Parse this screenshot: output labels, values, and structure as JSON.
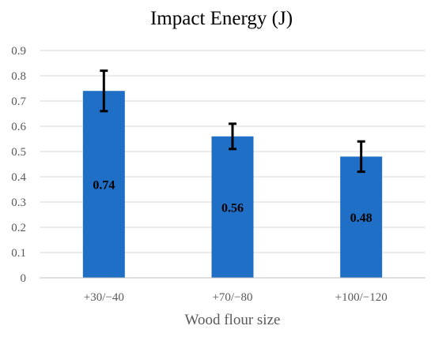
{
  "chart_data": {
    "type": "bar",
    "title": "Impact Energy (J)",
    "xlabel": "Wood flour size",
    "ylabel": "",
    "categories": [
      "+30/−40",
      "+70/−80",
      "+100/−120"
    ],
    "values": [
      0.74,
      0.56,
      0.48
    ],
    "data_labels": [
      "0.74",
      "0.56",
      "0.48"
    ],
    "error_bars": [
      {
        "low": 0.66,
        "high": 0.82
      },
      {
        "low": 0.51,
        "high": 0.61
      },
      {
        "low": 0.42,
        "high": 0.54
      }
    ],
    "ylim": [
      0,
      0.9
    ],
    "yticks": [
      0,
      0.1,
      0.2,
      0.3,
      0.4,
      0.5,
      0.6,
      0.7,
      0.8,
      0.9
    ],
    "ytick_labels": [
      "0",
      "0.1",
      "0.2",
      "0.3",
      "0.4",
      "0.5",
      "0.6",
      "0.7",
      "0.8",
      "0.9"
    ],
    "grid": true,
    "legend": "none",
    "colors": {
      "bar": "#1f6fc6",
      "error_bar": "#000000",
      "grid": "#d9d9d9",
      "axis": "#bfbfbf",
      "tick_text": "#595959",
      "title_text": "#000000",
      "label_text": "#000000"
    }
  }
}
